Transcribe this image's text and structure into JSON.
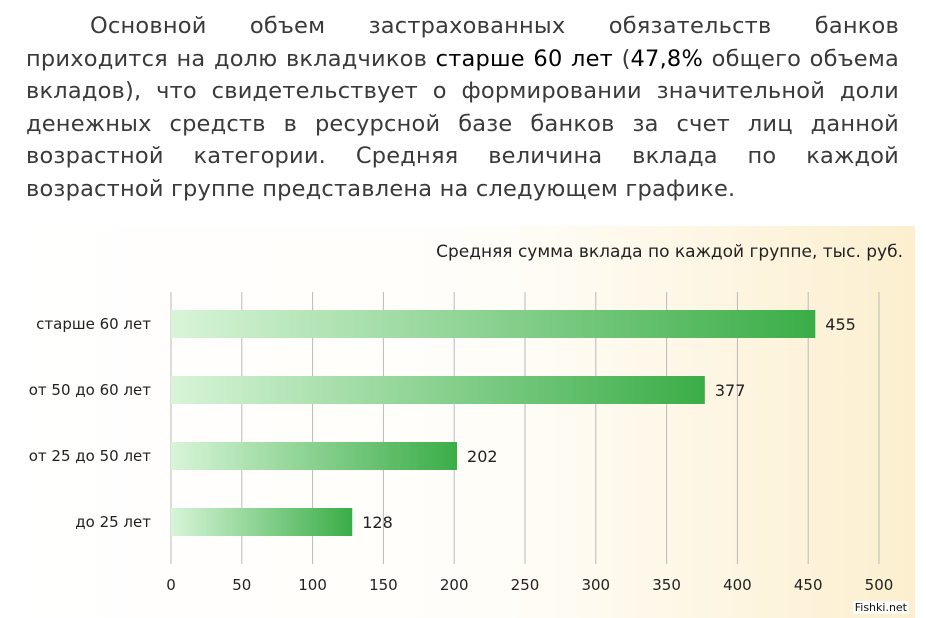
{
  "intro": {
    "p1": "Основной объем застрахованных обязательств банков приходится на долю вкладчиков ",
    "hl1": "старше 60 лет",
    "p2": " (",
    "hl2": "47,8%",
    "p3": " общего объема вкладов), что свидетельствует о формировании значительной доли денежных средств в ресурсной базе банков за счет лиц данной возрастной категории. Средняя величина вклада по каждой возрастной группе представлена на следующем графике."
  },
  "watermark": "Fishki.net",
  "colors": {
    "bar_start": "#d8f5d8",
    "bar_end": "#3aad47",
    "grid": "#b9b9b9"
  },
  "chart_data": {
    "type": "bar",
    "orientation": "horizontal",
    "title": "Средняя сумма вклада по каждой группе, тыс. руб.",
    "categories": [
      "старше 60 лет",
      "от 50 до 60 лет",
      "от 25 до 50 лет",
      "до 25 лет"
    ],
    "values": [
      455,
      377,
      202,
      128
    ],
    "xlim": [
      0,
      500
    ],
    "xticks": [
      0,
      50,
      100,
      150,
      200,
      250,
      300,
      350,
      400,
      450,
      500
    ],
    "grid": true,
    "legend": "none"
  }
}
